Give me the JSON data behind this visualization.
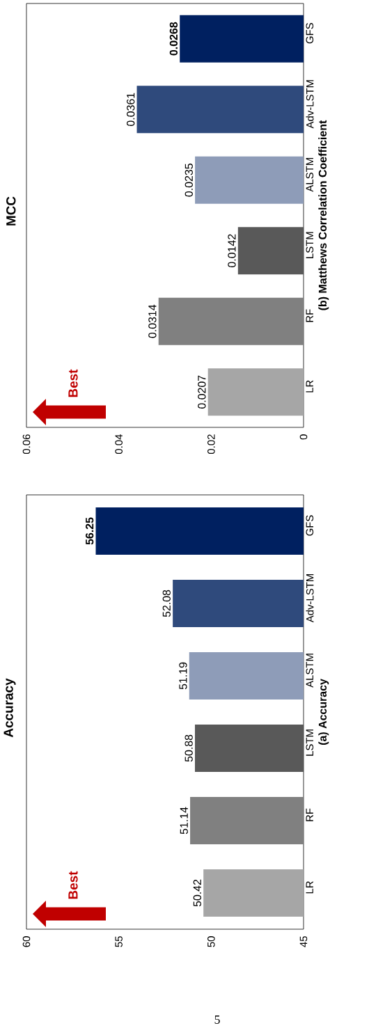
{
  "chart_data": [
    {
      "type": "bar",
      "orientation": "horizontal",
      "title": "Accuracy",
      "ylabel": "(a) Accuracy",
      "categories": [
        "GFS",
        "Adv-LSTM",
        "ALSTM",
        "LSTM",
        "RF",
        "LR"
      ],
      "values": [
        56.25,
        52.08,
        51.19,
        50.88,
        51.14,
        50.42
      ],
      "colors": [
        "#002060",
        "#2f4a7c",
        "#8e9cb8",
        "#595959",
        "#808080",
        "#a6a6a6"
      ],
      "value_labels": [
        "**56.25**",
        "52.08",
        "51.19",
        "50.88",
        "51.14",
        "50.42"
      ],
      "xlim": [
        60,
        45
      ],
      "xticks": [
        45,
        50,
        55,
        60
      ],
      "annotations": [
        "Best",
        "5"
      ]
    },
    {
      "type": "bar",
      "orientation": "horizontal",
      "title": "MCC",
      "ylabel": "(b) Matthews Correlation Coefficient",
      "categories": [
        "GFS",
        "Adv-LSTM",
        "ALSTM",
        "LSTM",
        "RF",
        "LR"
      ],
      "values": [
        0.0268,
        0.0361,
        0.0235,
        0.0142,
        0.0314,
        0.0207
      ],
      "colors": [
        "#002060",
        "#2f4a7c",
        "#8e9cb8",
        "#595959",
        "#808080",
        "#a6a6a6"
      ],
      "value_labels": [
        "**0.0268**",
        "0.0361",
        "0.0235",
        "0.0142",
        "0.0314",
        "0.0207"
      ],
      "xlim": [
        0.06,
        0
      ],
      "xticks": [
        0,
        0.02,
        0.04,
        0.06
      ],
      "annotations": [
        "Best"
      ]
    }
  ]
}
